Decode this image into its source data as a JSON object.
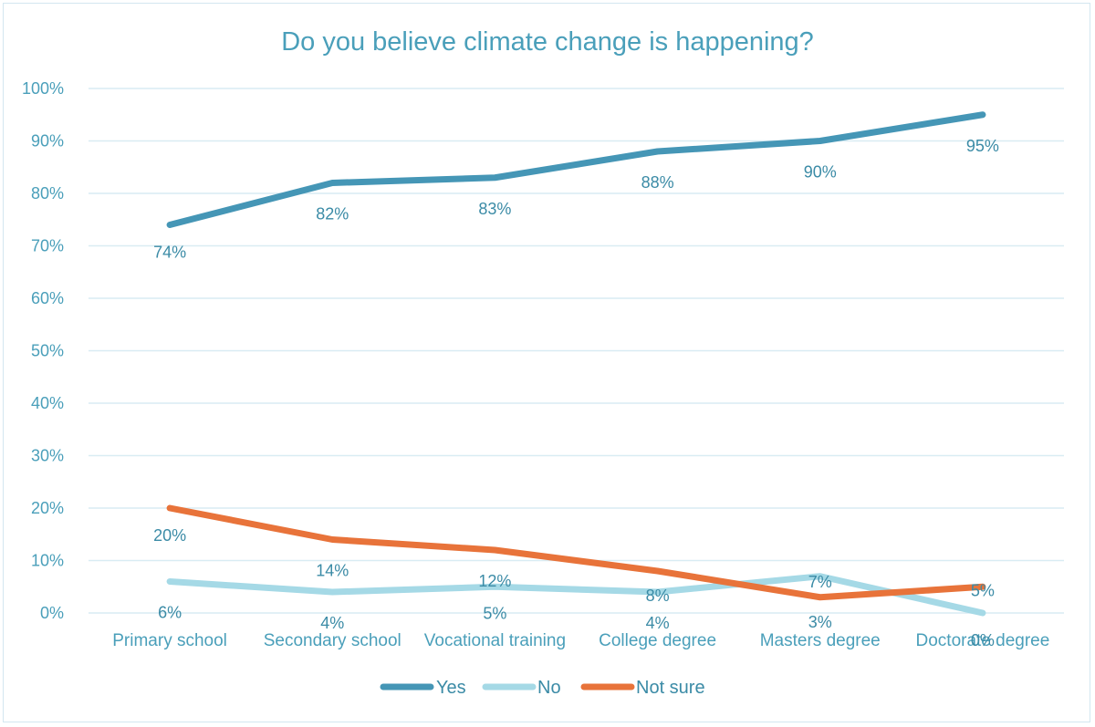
{
  "chart_data": {
    "type": "line",
    "title": "Do you believe climate change is happening?",
    "xlabel": "",
    "ylabel": "",
    "ylim": [
      0,
      100
    ],
    "y_ticks": [
      "0%",
      "10%",
      "20%",
      "30%",
      "40%",
      "50%",
      "60%",
      "70%",
      "80%",
      "90%",
      "100%"
    ],
    "y_tick_values": [
      0,
      10,
      20,
      30,
      40,
      50,
      60,
      70,
      80,
      90,
      100
    ],
    "grid": true,
    "legend_position": "bottom",
    "categories": [
      "Primary school",
      "Secondary school",
      "Vocational training",
      "College degree",
      "Masters degree",
      "Doctorate degree"
    ],
    "series": [
      {
        "name": "Yes",
        "color": "#4596b6",
        "values": [
          74,
          82,
          83,
          88,
          90,
          95
        ],
        "labels": [
          "74%",
          "82%",
          "83%",
          "88%",
          "90%",
          "95%"
        ]
      },
      {
        "name": "No",
        "color": "#a5d9e6",
        "values": [
          6,
          4,
          5,
          4,
          7,
          0
        ],
        "labels": [
          "6%",
          "4%",
          "5%",
          "4%",
          "7%",
          "0%"
        ]
      },
      {
        "name": "Not sure",
        "color": "#e8733a",
        "values": [
          20,
          14,
          12,
          8,
          3,
          5
        ],
        "labels": [
          "20%",
          "14%",
          "12%",
          "8%",
          "3%",
          "5%"
        ]
      }
    ]
  }
}
